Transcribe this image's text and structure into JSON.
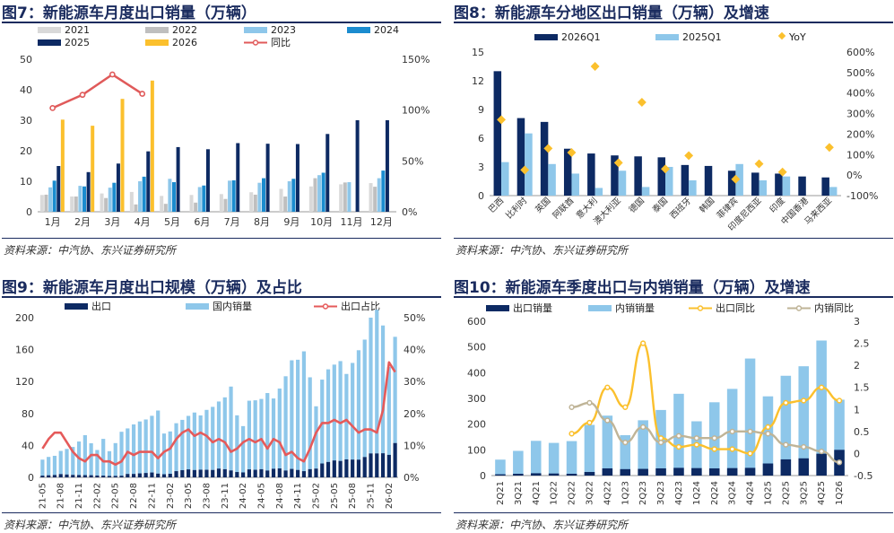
{
  "source_text": "资料来源：中汽协、东兴证券研究所",
  "chart_data": [
    {
      "id": "fig7",
      "type": "bar",
      "title": "图7：新能源车月度出口销量（万辆）",
      "categories": [
        "1月",
        "2月",
        "3月",
        "4月",
        "5月",
        "6月",
        "7月",
        "8月",
        "9月",
        "10月",
        "11月",
        "12月"
      ],
      "series": [
        {
          "name": "2021",
          "color": "#d9d9d9",
          "values": [
            5.5,
            5.0,
            6.0,
            6.5,
            5.2,
            5.5,
            5.8,
            6.4,
            7.5,
            8.3,
            9.0,
            9.4
          ]
        },
        {
          "name": "2022",
          "color": "#bfbfbf",
          "values": [
            5.6,
            5.0,
            4.5,
            2.4,
            2.6,
            3.0,
            4.2,
            5.6,
            5.0,
            11.0,
            9.6,
            8.2
          ]
        },
        {
          "name": "2023",
          "color": "#8ec7ea",
          "values": [
            8.0,
            8.5,
            7.9,
            10.0,
            10.8,
            8.1,
            10.2,
            9.5,
            10.0,
            12.0,
            9.7,
            11.0
          ]
        },
        {
          "name": "2024",
          "color": "#1b8ccf",
          "values": [
            10.2,
            8.3,
            9.5,
            11.5,
            9.7,
            8.6,
            10.3,
            11.0,
            10.8,
            12.8,
            null,
            13.5
          ]
        },
        {
          "name": "2025",
          "color": "#0d2a63",
          "values": [
            15.0,
            13.0,
            15.8,
            19.8,
            21.2,
            20.5,
            22.5,
            22.3,
            22.2,
            25.5,
            30.0,
            30.0
          ]
        },
        {
          "name": "2026",
          "color": "#fbc02d",
          "values": [
            30.2,
            28.2,
            37.0,
            43.0,
            null,
            null,
            null,
            null,
            null,
            null,
            null,
            null
          ]
        }
      ],
      "line": {
        "name": "同比",
        "color": "#e05a5a",
        "values": [
          102,
          115,
          135,
          116
        ]
      },
      "ylim": [
        0,
        50
      ],
      "yticks": [
        0,
        10,
        20,
        30,
        40,
        50
      ],
      "y2lim": [
        0,
        150
      ],
      "y2ticks": [
        "0%",
        "50%",
        "100%",
        "150%"
      ]
    },
    {
      "id": "fig8",
      "type": "bar",
      "title": "图8：新能源车分地区出口销量（万辆）及增速",
      "categories": [
        "巴西",
        "比利时",
        "英国",
        "阿联酋",
        "意大利",
        "澳大利亚",
        "德国",
        "泰国",
        "西班牙",
        "韩国",
        "菲律宾",
        "印度尼西亚",
        "印度",
        "中国香港",
        "马来西亚"
      ],
      "series": [
        {
          "name": "2026Q1",
          "color": "#0d2a63",
          "values": [
            13.0,
            8.1,
            7.7,
            4.9,
            4.4,
            4.2,
            4.1,
            4.0,
            3.2,
            3.1,
            2.6,
            2.4,
            2.3,
            2.0,
            1.9
          ]
        },
        {
          "name": "2025Q1",
          "color": "#8ec7ea",
          "values": [
            3.5,
            6.5,
            3.3,
            2.3,
            0.8,
            2.6,
            0.9,
            3.0,
            1.6,
            null,
            3.3,
            1.6,
            2.0,
            null,
            0.9
          ]
        }
      ],
      "scatter": {
        "name": "YoY",
        "color": "#fbc02d",
        "values": [
          270,
          25,
          130,
          110,
          530,
          60,
          355,
          30,
          95,
          null,
          -20,
          55,
          15,
          null,
          135
        ]
      },
      "ylim": [
        0,
        15
      ],
      "yticks": [
        0,
        3,
        6,
        9,
        12,
        15
      ],
      "y2lim": [
        -100,
        600
      ],
      "y2ticks": [
        "-100%",
        "0%",
        "100%",
        "200%",
        "300%",
        "400%",
        "500%",
        "600%"
      ]
    },
    {
      "id": "fig9",
      "type": "bar",
      "title": "图9：新能源车月度出口规模（万辆）及占比",
      "categories": [
        "21-05",
        "21-06",
        "21-07",
        "21-08",
        "21-09",
        "21-10",
        "21-11",
        "21-12",
        "22-01",
        "22-02",
        "22-03",
        "22-04",
        "22-05",
        "22-06",
        "22-07",
        "22-08",
        "22-09",
        "22-10",
        "22-11",
        "22-12",
        "23-01",
        "23-02",
        "23-03",
        "23-04",
        "23-05",
        "23-06",
        "23-07",
        "23-08",
        "23-09",
        "23-10",
        "23-11",
        "23-12",
        "24-01",
        "24-02",
        "24-03",
        "24-04",
        "24-05",
        "24-06",
        "24-07",
        "24-08",
        "24-09",
        "24-10",
        "24-11",
        "24-12",
        "25-01",
        "25-02",
        "25-03",
        "25-04",
        "25-05",
        "25-06",
        "25-07",
        "25-08",
        "25-09",
        "25-10",
        "25-11",
        "25-12",
        "26-01",
        "26-02",
        "26-03"
      ],
      "xtick_labels": [
        "21-05",
        "21-08",
        "21-11",
        "22-02",
        "22-05",
        "22-08",
        "22-11",
        "23-02",
        "23-05",
        "23-08",
        "23-11",
        "24-02",
        "24-05",
        "24-08",
        "24-11",
        "25-02",
        "25-05",
        "25-08",
        "25-11",
        "26-02"
      ],
      "series": [
        {
          "name": "出口",
          "color": "#0d2a63",
          "values": [
            2.2,
            2.6,
            3.0,
            4.1,
            3.6,
            3.1,
            2.9,
            2.8,
            2.7,
            2.3,
            2.2,
            1.8,
            1.9,
            2.1,
            4.3,
            4.3,
            5.0,
            5.5,
            6.1,
            4.7,
            3.9,
            4.5,
            7.8,
            9.0,
            10.0,
            9.2,
            9.6,
            9.5,
            9.3,
            11.0,
            10.2,
            8.7,
            6.7,
            6.2,
            10.0,
            9.5,
            10.2,
            8.6,
            10.8,
            11.2,
            8.6,
            10.6,
            9.3,
            7.8,
            10.3,
            11.0,
            17.4,
            19.3,
            21.2,
            20.6,
            22.5,
            22.3,
            22.2,
            25.5,
            30.0,
            30.0,
            30.2,
            28.2,
            43.0
          ]
        },
        {
          "name": "国内销量",
          "color": "#8ec7ea",
          "values": [
            20,
            23,
            24,
            29,
            32,
            35,
            42,
            50,
            40,
            32,
            46,
            31,
            41,
            55,
            57,
            62,
            65,
            67,
            71,
            79,
            51,
            53,
            60,
            63,
            67,
            72,
            68,
            75,
            79,
            84,
            90,
            105,
            71,
            58,
            86,
            87,
            88,
            97,
            88,
            100,
            118,
            136,
            138,
            150,
            115,
            78,
            105,
            116,
            120,
            125,
            107,
            121,
            137,
            147,
            170,
            180,
            160,
            110,
            133
          ]
        }
      ],
      "line": {
        "name": "出口占比",
        "color": "#e55a5a",
        "values": [
          9,
          12,
          14,
          14,
          11,
          8,
          6,
          5,
          7,
          7,
          5,
          5,
          4,
          5,
          8,
          7,
          8,
          8,
          8,
          6,
          8,
          9,
          12,
          14,
          15,
          13,
          14,
          13,
          11,
          12,
          11,
          8,
          9,
          11,
          12,
          11,
          12,
          9,
          12,
          11,
          7,
          8,
          6,
          5,
          9,
          14,
          17,
          17,
          18,
          17,
          18,
          16,
          14,
          15,
          15,
          14,
          21,
          36,
          33
        ]
      },
      "ylim": [
        0,
        200
      ],
      "yticks": [
        0,
        40,
        80,
        120,
        160,
        200
      ],
      "y2lim": [
        0,
        50
      ],
      "y2ticks": [
        "0%",
        "10%",
        "20%",
        "30%",
        "40%",
        "50%"
      ]
    },
    {
      "id": "fig10",
      "type": "bar",
      "title": "图10：新能源车季度出口与内销销量（万辆）及增速",
      "categories": [
        "2Q21",
        "3Q21",
        "4Q21",
        "1Q22",
        "2Q22",
        "3Q22",
        "4Q22",
        "1Q23",
        "2Q23",
        "3Q23",
        "4Q23",
        "1Q24",
        "2Q24",
        "3Q24",
        "4Q24",
        "1Q25",
        "2Q25",
        "3Q25",
        "4Q25",
        "1Q26"
      ],
      "series": [
        {
          "name": "出口销量",
          "color": "#0d2a63",
          "values": [
            5,
            7,
            9,
            8,
            7,
            14,
            28,
            25,
            26,
            28,
            30,
            29,
            28,
            29,
            30,
            47,
            63,
            67,
            85,
            100
          ]
        },
        {
          "name": "内销销量",
          "color": "#8ec7ea",
          "values": [
            62,
            96,
            135,
            127,
            134,
            197,
            233,
            157,
            215,
            255,
            318,
            211,
            285,
            337,
            455,
            308,
            388,
            425,
            525,
            295
          ]
        }
      ],
      "lines": [
        {
          "name": "出口同比",
          "color": "#fbc02d",
          "values": [
            null,
            null,
            null,
            null,
            0.45,
            0.7,
            1.5,
            1.05,
            2.5,
            0.35,
            0.15,
            0.2,
            0.1,
            0.1,
            0.0,
            0.6,
            1.15,
            1.2,
            1.5,
            1.2
          ]
        },
        {
          "name": "内销同比",
          "color": "#bfb497",
          "values": [
            null,
            null,
            null,
            null,
            1.05,
            1.15,
            0.75,
            0.25,
            0.6,
            0.25,
            0.4,
            0.35,
            0.35,
            0.5,
            0.5,
            0.45,
            0.2,
            0.15,
            0.05,
            -0.2
          ]
        }
      ],
      "ylim": [
        0,
        600
      ],
      "yticks": [
        0,
        100,
        200,
        300,
        400,
        500,
        600
      ],
      "y2lim": [
        -0.5,
        3
      ],
      "y2ticks": [
        "-0.5",
        "0",
        "0.5",
        "1",
        "1.5",
        "2",
        "2.5",
        "3"
      ]
    }
  ]
}
